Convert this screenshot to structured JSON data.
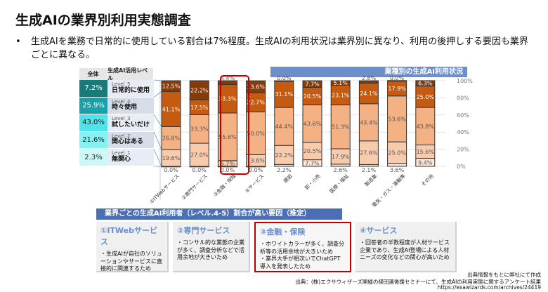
{
  "title": "生成AIの業界別利用実態調査",
  "bullet": "生成AIを業務で日常的に使用している割合は7%程度。生成AIの利用状況は業界別に異なり、利用の後押しする要因も業界ごとに異なる。",
  "overall_table": {
    "headers": [
      "全体",
      "生成AI活用レベル"
    ],
    "rows": [
      {
        "value": "7.2%",
        "level": "Level_5",
        "label": "日常的に使用",
        "color": "#1a7a7a"
      },
      {
        "value": "25.9%",
        "level": "Level_4",
        "label": "時々使用",
        "color": "#17a2aa"
      },
      {
        "value": "43.0%",
        "level": "Level_3",
        "label": "試したいだけ",
        "color": "#4fe3ea"
      },
      {
        "value": "21.6%",
        "level": "Level_2",
        "label": "関心はある",
        "color": "#86f1f1"
      },
      {
        "value": "2.3%",
        "level": "Level_1",
        "label": "無関心",
        "color": "#cdf8f8"
      }
    ]
  },
  "chart_data": {
    "type": "bar",
    "stacked": true,
    "percent": true,
    "title": "業種別の生成AI利用状況",
    "categories": [
      "①ITWebサービス",
      "②専門サービス",
      "③金融・保険",
      "④サービス",
      "建設",
      "卸・小売",
      "医療・福祉",
      "製造業",
      "電気・ガス・運輸等",
      "その他"
    ],
    "series": [
      {
        "name": "Level_1",
        "color": "#fbe5d6",
        "values": [
          0.0,
          0.0,
          0.0,
          0.0,
          2.2,
          7.7,
          2.6,
          2.1,
          3.6,
          9.4
        ]
      },
      {
        "name": "Level_2",
        "color": "#f8cbad",
        "values": [
          19.6,
          27.0,
          6.7,
          13.6,
          22.2,
          20.5,
          17.9,
          27.6,
          25.0,
          15.6
        ]
      },
      {
        "name": "Level_3",
        "color": "#f4b183",
        "values": [
          26.8,
          33.3,
          55.6,
          50.0,
          44.4,
          43.6,
          51.3,
          43.4,
          53.6,
          43.8
        ]
      },
      {
        "name": "Level_4",
        "color": "#c55a11",
        "values": [
          41.1,
          17.5,
          33.3,
          22.7,
          31.1,
          20.5,
          23.1,
          24.1,
          17.9,
          25.0
        ]
      },
      {
        "name": "Level_5",
        "color": "#843c0c",
        "values": [
          12.5,
          22.2,
          4.4,
          13.6,
          0.0,
          7.7,
          5.1,
          2.8,
          0.0,
          6.3
        ]
      }
    ],
    "yticks": [
      "0%",
      "20%",
      "40%",
      "60%",
      "80%",
      "100%"
    ],
    "ylim": [
      0,
      100
    ],
    "highlight": "③金融・保険"
  },
  "factors": {
    "header": "業界ごとの生成AI利用者（レベル.4-5）割合が高い要因（推定）",
    "items": [
      {
        "title": "①ITWebサービス",
        "body": "・生成AIが自社のソリューションやサービスに直接的に関連するため"
      },
      {
        "title": "②専門サービス",
        "body": "・コンサル的な業態の企業が多く、調査分析などで活用余地が大きいため"
      },
      {
        "title": "③金融・保険",
        "body": "・ホワイトカラーが多く、調査分析等の活用余地が大きいため\n・業界大手が相次いでChatGPT導入を発表したため"
      },
      {
        "title": "④サービス",
        "body": "・回答者の半数程度が人材サービス企業であり、生成AI登場による人材ニーズの変化などの関心が高いため"
      }
    ]
  },
  "source": {
    "line1": "出典情報をもとに弊社にて作成",
    "line2": "出典：(株)エクサウィザーズ開催の経団連後援セミナーにて、生成AIの利用実態に関するアンケート結果",
    "url": "https://exawizards.com/archives/24419"
  }
}
